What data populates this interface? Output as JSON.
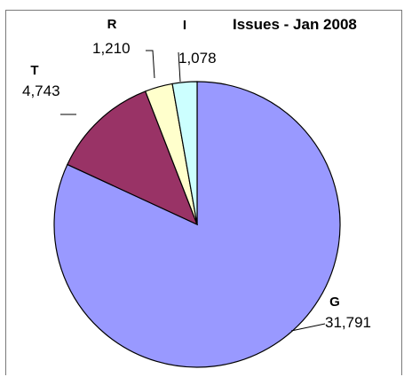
{
  "chart_data": {
    "type": "pie",
    "title": "Issues - Jan 2008",
    "slices": [
      {
        "label": "G",
        "value": 31791,
        "value_label": "31,791",
        "color": "#9999ff"
      },
      {
        "label": "T",
        "value": 4743,
        "value_label": "4,743",
        "color": "#993366"
      },
      {
        "label": "R",
        "value": 1210,
        "value_label": "1,210",
        "color": "#ffffcc"
      },
      {
        "label": "I",
        "value": 1078,
        "value_label": "1,078",
        "color": "#ccffff"
      }
    ],
    "start": "12 o'clock",
    "direction": "clockwise",
    "legend": "none"
  }
}
